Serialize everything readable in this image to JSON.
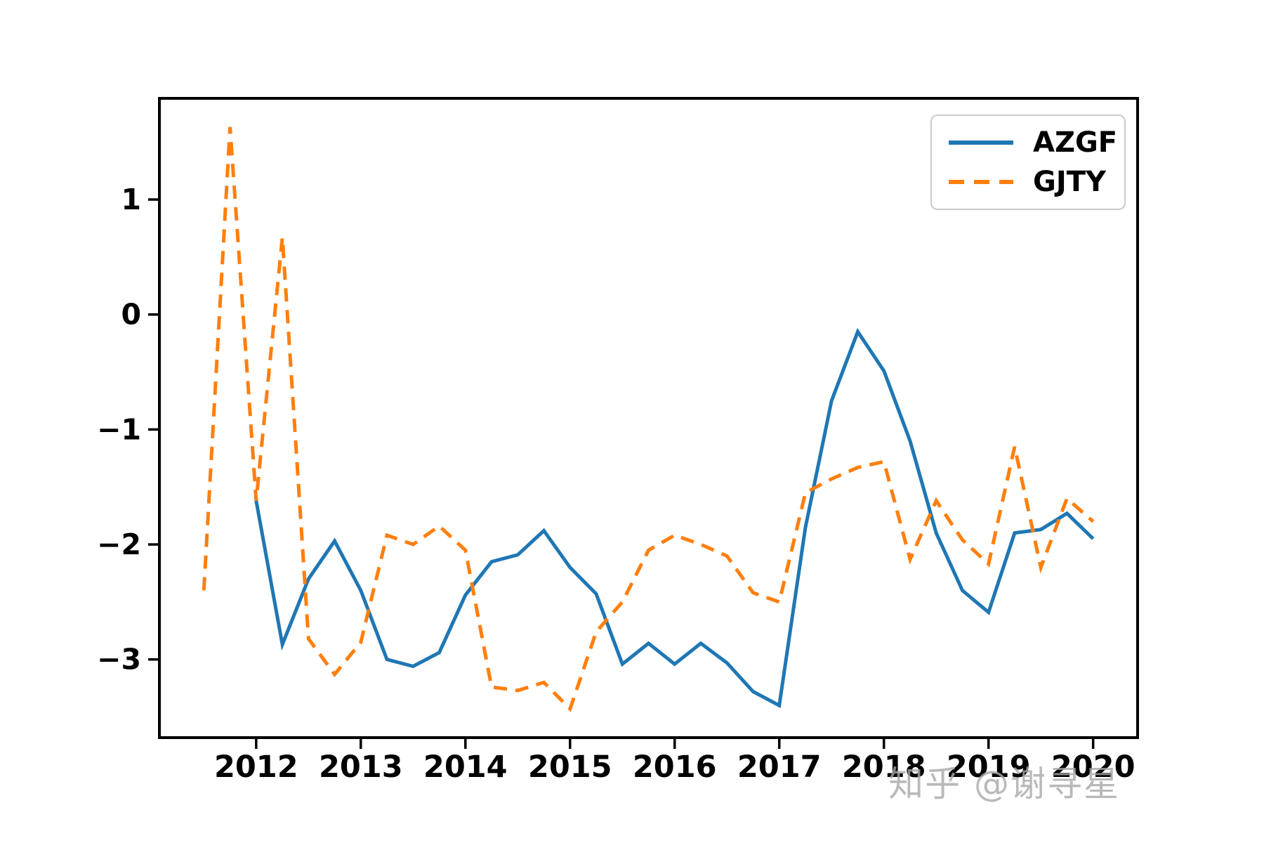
{
  "chart_data": {
    "type": "line",
    "title": "",
    "xlabel": "",
    "ylabel": "",
    "grid": false,
    "legend_position": "upper right",
    "xlim": [
      2011.075,
      2020.425
    ],
    "ylim": [
      -3.68,
      1.88
    ],
    "x_ticks": [
      2012,
      2013,
      2014,
      2015,
      2016,
      2017,
      2018,
      2019,
      2020
    ],
    "x_tick_labels": [
      "2012",
      "2013",
      "2014",
      "2015",
      "2016",
      "2017",
      "2018",
      "2019",
      "2020"
    ],
    "y_ticks": [
      1,
      0,
      -1,
      -2,
      -3
    ],
    "y_tick_labels": [
      "1",
      "0",
      "−1",
      "−2",
      "−3"
    ],
    "series": [
      {
        "name": "AZGF",
        "style": "solid",
        "color": "#1f77b4",
        "x": [
          2012.0,
          2012.25,
          2012.5,
          2012.75,
          2013.0,
          2013.25,
          2013.5,
          2013.75,
          2014.0,
          2014.25,
          2014.5,
          2014.75,
          2015.0,
          2015.25,
          2015.5,
          2015.75,
          2016.0,
          2016.25,
          2016.5,
          2016.75,
          2017.0,
          2017.25,
          2017.5,
          2017.75,
          2018.0,
          2018.25,
          2018.5,
          2018.75,
          2019.0,
          2019.25,
          2019.5,
          2019.75,
          2020.0
        ],
        "y": [
          -1.62,
          -2.87,
          -2.3,
          -1.97,
          -2.4,
          -3.0,
          -3.06,
          -2.94,
          -2.44,
          -2.15,
          -2.09,
          -1.88,
          -2.2,
          -2.43,
          -3.04,
          -2.86,
          -3.04,
          -2.86,
          -3.03,
          -3.28,
          -3.4,
          -1.85,
          -0.75,
          -0.15,
          -0.49,
          -1.1,
          -1.9,
          -2.4,
          -2.59,
          -1.9,
          -1.87,
          -1.73,
          -1.95
        ]
      },
      {
        "name": "GJTY",
        "style": "dashed",
        "color": "#ff7f0e",
        "x": [
          2011.5,
          2011.75,
          2012.0,
          2012.25,
          2012.5,
          2012.75,
          2013.0,
          2013.25,
          2013.5,
          2013.75,
          2014.0,
          2014.25,
          2014.5,
          2014.75,
          2015.0,
          2015.25,
          2015.5,
          2015.75,
          2016.0,
          2016.25,
          2016.5,
          2016.75,
          2017.0,
          2017.25,
          2017.5,
          2017.75,
          2018.0,
          2018.25,
          2018.5,
          2018.75,
          2019.0,
          2019.25,
          2019.5,
          2019.75,
          2020.0
        ],
        "y": [
          -2.4,
          1.63,
          -1.62,
          0.67,
          -2.82,
          -3.13,
          -2.85,
          -1.92,
          -2.0,
          -1.84,
          -2.05,
          -3.24,
          -3.27,
          -3.2,
          -3.43,
          -2.76,
          -2.5,
          -2.05,
          -1.92,
          -2.0,
          -2.1,
          -2.42,
          -2.5,
          -1.55,
          -1.43,
          -1.33,
          -1.28,
          -2.13,
          -1.62,
          -1.96,
          -2.17,
          -1.15,
          -2.2,
          -1.6,
          -1.8
        ]
      }
    ]
  },
  "legend": {
    "items": [
      {
        "label": "AZGF"
      },
      {
        "label": "GJTY"
      }
    ]
  },
  "watermark": {
    "text": "知乎 @谢寻星"
  },
  "colors": {
    "background": "#ffffff",
    "axes": "#000000",
    "series_blue": "#1f77b4",
    "series_orange": "#ff7f0e",
    "legend_border": "#cbcbcb",
    "watermark": "#a8a8a8"
  }
}
